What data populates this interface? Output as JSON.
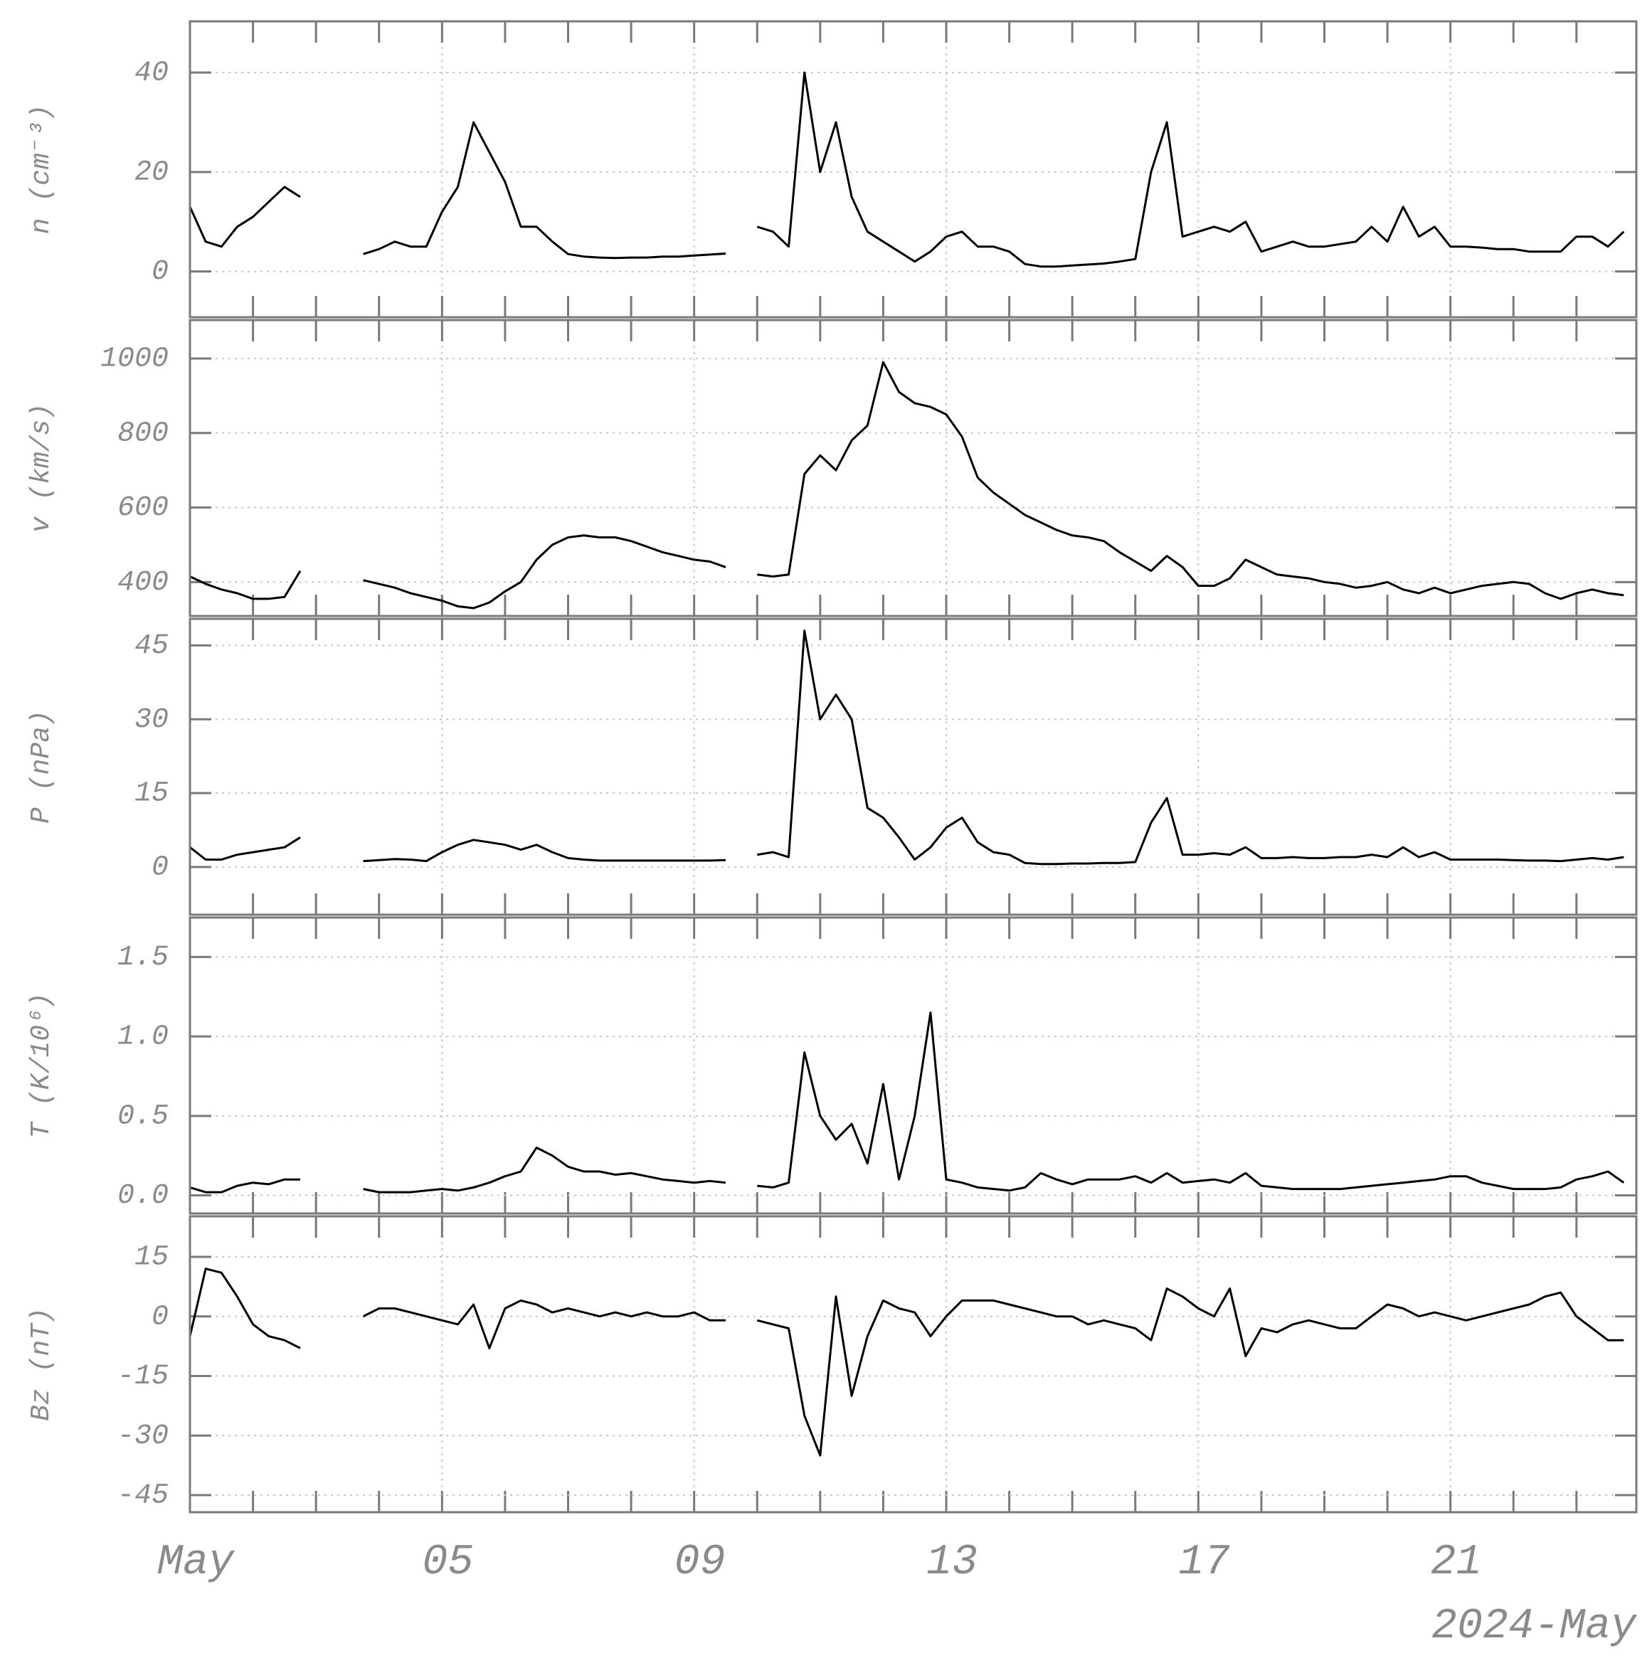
{
  "chart_data": [
    {
      "type": "line",
      "ylabel": "n (cm⁻³)",
      "color": "#000000",
      "ylim": [
        -9.2,
        50.3
      ],
      "yticks": [
        0,
        20,
        40
      ],
      "grid": true,
      "x": [
        1,
        1.25,
        1.5,
        1.75,
        2,
        2.25,
        2.5,
        2.75,
        3,
        3.25,
        3.5,
        3.75,
        4,
        4.25,
        4.5,
        4.75,
        5,
        5.25,
        5.5,
        5.75,
        6,
        6.25,
        6.5,
        6.75,
        7,
        7.25,
        7.5,
        7.75,
        8,
        8.25,
        8.5,
        8.75,
        9,
        9.25,
        9.5,
        9.75,
        10,
        10.25,
        10.5,
        10.75,
        11,
        11.25,
        11.5,
        11.75,
        12,
        12.25,
        12.5,
        12.75,
        13,
        13.25,
        13.5,
        13.75,
        14,
        14.25,
        14.5,
        14.75,
        15,
        15.25,
        15.5,
        15.75,
        16,
        16.25,
        16.5,
        16.75,
        17,
        17.25,
        17.5,
        17.75,
        18,
        18.25,
        18.5,
        18.75,
        19,
        19.25,
        19.5,
        19.75,
        20,
        20.25,
        20.5,
        20.75,
        21,
        21.25,
        21.5,
        21.75,
        22,
        22.25,
        22.5,
        22.75,
        23,
        23.25,
        23.5,
        23.75
      ],
      "values": [
        13,
        6,
        5,
        9,
        11,
        14,
        17,
        15,
        null,
        null,
        null,
        3.5,
        4.5,
        6,
        5,
        5,
        12,
        17,
        30,
        24,
        18,
        9,
        9,
        6,
        3.5,
        3,
        2.8,
        2.7,
        2.8,
        2.8,
        3,
        3,
        3.2,
        3.4,
        3.6,
        null,
        9,
        8,
        5,
        40,
        20,
        30,
        15,
        8,
        6,
        4,
        2,
        4,
        7,
        8,
        5,
        5,
        4,
        1.5,
        1,
        1,
        1.2,
        1.4,
        1.6,
        2,
        2.5,
        20,
        30,
        7,
        8,
        9,
        8,
        10,
        4,
        5,
        6,
        5,
        5,
        5.5,
        6,
        9,
        6,
        13,
        7,
        9,
        5,
        5,
        4.8,
        4.5,
        4.5,
        4,
        4,
        4,
        7,
        7,
        5,
        8
      ]
    },
    {
      "type": "line",
      "ylabel": "v (km/s)",
      "color": "#000000",
      "ylim": [
        309,
        1103
      ],
      "yticks": [
        400,
        600,
        800,
        1000
      ],
      "grid": true,
      "x": [
        1,
        1.25,
        1.5,
        1.75,
        2,
        2.25,
        2.5,
        2.75,
        3,
        3.25,
        3.5,
        3.75,
        4,
        4.25,
        4.5,
        4.75,
        5,
        5.25,
        5.5,
        5.75,
        6,
        6.25,
        6.5,
        6.75,
        7,
        7.25,
        7.5,
        7.75,
        8,
        8.25,
        8.5,
        8.75,
        9,
        9.25,
        9.5,
        9.75,
        10,
        10.25,
        10.5,
        10.75,
        11,
        11.25,
        11.5,
        11.75,
        12,
        12.25,
        12.5,
        12.75,
        13,
        13.25,
        13.5,
        13.75,
        14,
        14.25,
        14.5,
        14.75,
        15,
        15.25,
        15.5,
        15.75,
        16,
        16.25,
        16.5,
        16.75,
        17,
        17.25,
        17.5,
        17.75,
        18,
        18.25,
        18.5,
        18.75,
        19,
        19.25,
        19.5,
        19.75,
        20,
        20.25,
        20.5,
        20.75,
        21,
        21.25,
        21.5,
        21.75,
        22,
        22.25,
        22.5,
        22.75,
        23,
        23.25,
        23.5,
        23.75
      ],
      "values": [
        415,
        395,
        380,
        370,
        355,
        355,
        360,
        430,
        null,
        null,
        null,
        405,
        395,
        385,
        370,
        360,
        350,
        335,
        330,
        345,
        375,
        400,
        460,
        500,
        520,
        525,
        520,
        520,
        510,
        495,
        480,
        470,
        460,
        455,
        440,
        null,
        420,
        415,
        420,
        690,
        740,
        700,
        780,
        820,
        990,
        910,
        880,
        870,
        850,
        790,
        680,
        640,
        610,
        580,
        560,
        540,
        525,
        520,
        510,
        480,
        455,
        430,
        470,
        440,
        390,
        390,
        410,
        460,
        440,
        420,
        415,
        410,
        400,
        395,
        385,
        390,
        400,
        380,
        370,
        385,
        370,
        380,
        390,
        395,
        400,
        395,
        370,
        355,
        370,
        380,
        370,
        365
      ]
    },
    {
      "type": "line",
      "ylabel": "P (nPa)",
      "color": "#000000",
      "ylim": [
        -9.7,
        50.4
      ],
      "yticks": [
        0,
        15,
        30,
        45
      ],
      "grid": true,
      "x": [
        1,
        1.25,
        1.5,
        1.75,
        2,
        2.25,
        2.5,
        2.75,
        3,
        3.25,
        3.5,
        3.75,
        4,
        4.25,
        4.5,
        4.75,
        5,
        5.25,
        5.5,
        5.75,
        6,
        6.25,
        6.5,
        6.75,
        7,
        7.25,
        7.5,
        7.75,
        8,
        8.25,
        8.5,
        8.75,
        9,
        9.25,
        9.5,
        9.75,
        10,
        10.25,
        10.5,
        10.75,
        11,
        11.25,
        11.5,
        11.75,
        12,
        12.25,
        12.5,
        12.75,
        13,
        13.25,
        13.5,
        13.75,
        14,
        14.25,
        14.5,
        14.75,
        15,
        15.25,
        15.5,
        15.75,
        16,
        16.25,
        16.5,
        16.75,
        17,
        17.25,
        17.5,
        17.75,
        18,
        18.25,
        18.5,
        18.75,
        19,
        19.25,
        19.5,
        19.75,
        20,
        20.25,
        20.5,
        20.75,
        21,
        21.25,
        21.5,
        21.75,
        22,
        22.25,
        22.5,
        22.75,
        23,
        23.25,
        23.5,
        23.75
      ],
      "values": [
        4,
        1.5,
        1.5,
        2.5,
        3,
        3.5,
        4,
        6,
        null,
        null,
        null,
        1.2,
        1.4,
        1.6,
        1.5,
        1.2,
        3,
        4.5,
        5.5,
        5,
        4.5,
        3.5,
        4.5,
        3,
        1.8,
        1.5,
        1.3,
        1.3,
        1.3,
        1.3,
        1.3,
        1.3,
        1.3,
        1.3,
        1.4,
        null,
        2.5,
        3,
        2,
        48,
        30,
        35,
        30,
        12,
        10,
        6,
        1.5,
        4,
        8,
        10,
        5,
        3,
        2.5,
        0.8,
        0.6,
        0.6,
        0.7,
        0.7,
        0.8,
        0.8,
        1,
        9,
        14,
        2.5,
        2.5,
        2.8,
        2.5,
        4,
        1.8,
        1.8,
        2,
        1.8,
        1.8,
        2,
        2,
        2.5,
        2,
        4,
        2,
        3,
        1.5,
        1.5,
        1.5,
        1.5,
        1.4,
        1.3,
        1.3,
        1.2,
        1.5,
        1.8,
        1.5,
        2
      ]
    },
    {
      "type": "line",
      "ylabel": "T (K/10⁶)",
      "color": "#000000",
      "ylim": [
        -0.114,
        1.748
      ],
      "yticks": [
        {
          "value": 0,
          "label": "0.0"
        },
        0.5,
        {
          "value": 1,
          "label": "1.0"
        },
        1.5
      ],
      "grid": true,
      "x": [
        1,
        1.25,
        1.5,
        1.75,
        2,
        2.25,
        2.5,
        2.75,
        3,
        3.25,
        3.5,
        3.75,
        4,
        4.25,
        4.5,
        4.75,
        5,
        5.25,
        5.5,
        5.75,
        6,
        6.25,
        6.5,
        6.75,
        7,
        7.25,
        7.5,
        7.75,
        8,
        8.25,
        8.5,
        8.75,
        9,
        9.25,
        9.5,
        9.75,
        10,
        10.25,
        10.5,
        10.75,
        11,
        11.25,
        11.5,
        11.75,
        12,
        12.25,
        12.5,
        12.75,
        13,
        13.25,
        13.5,
        13.75,
        14,
        14.25,
        14.5,
        14.75,
        15,
        15.25,
        15.5,
        15.75,
        16,
        16.25,
        16.5,
        16.75,
        17,
        17.25,
        17.5,
        17.75,
        18,
        18.25,
        18.5,
        18.75,
        19,
        19.25,
        19.5,
        19.75,
        20,
        20.25,
        20.5,
        20.75,
        21,
        21.25,
        21.5,
        21.75,
        22,
        22.25,
        22.5,
        22.75,
        23,
        23.25,
        23.5,
        23.75
      ],
      "values": [
        0.05,
        0.02,
        0.02,
        0.06,
        0.08,
        0.07,
        0.1,
        0.1,
        null,
        null,
        null,
        0.04,
        0.02,
        0.02,
        0.02,
        0.03,
        0.04,
        0.03,
        0.05,
        0.08,
        0.12,
        0.15,
        0.3,
        0.25,
        0.18,
        0.15,
        0.15,
        0.13,
        0.14,
        0.12,
        0.1,
        0.09,
        0.08,
        0.09,
        0.08,
        null,
        0.06,
        0.05,
        0.08,
        0.9,
        0.5,
        0.35,
        0.45,
        0.2,
        0.7,
        0.1,
        0.5,
        1.15,
        0.1,
        0.08,
        0.05,
        0.04,
        0.03,
        0.05,
        0.14,
        0.1,
        0.07,
        0.1,
        0.1,
        0.1,
        0.12,
        0.08,
        0.14,
        0.08,
        0.09,
        0.1,
        0.08,
        0.14,
        0.06,
        0.05,
        0.04,
        0.04,
        0.04,
        0.04,
        0.05,
        0.06,
        0.07,
        0.08,
        0.09,
        0.1,
        0.12,
        0.12,
        0.08,
        0.06,
        0.04,
        0.04,
        0.04,
        0.05,
        0.1,
        0.12,
        0.15,
        0.08
      ]
    },
    {
      "type": "line",
      "ylabel": "Bz (nT)",
      "color": "#000000",
      "ylim": [
        -49.3,
        25.2
      ],
      "yticks": [
        -45,
        -30,
        -15,
        0,
        15
      ],
      "grid": true,
      "x": [
        1,
        1.25,
        1.5,
        1.75,
        2,
        2.25,
        2.5,
        2.75,
        3,
        3.25,
        3.5,
        3.75,
        4,
        4.25,
        4.5,
        4.75,
        5,
        5.25,
        5.5,
        5.75,
        6,
        6.25,
        6.5,
        6.75,
        7,
        7.25,
        7.5,
        7.75,
        8,
        8.25,
        8.5,
        8.75,
        9,
        9.25,
        9.5,
        9.75,
        10,
        10.25,
        10.5,
        10.75,
        11,
        11.25,
        11.5,
        11.75,
        12,
        12.25,
        12.5,
        12.75,
        13,
        13.25,
        13.5,
        13.75,
        14,
        14.25,
        14.5,
        14.75,
        15,
        15.25,
        15.5,
        15.75,
        16,
        16.25,
        16.5,
        16.75,
        17,
        17.25,
        17.5,
        17.75,
        18,
        18.25,
        18.5,
        18.75,
        19,
        19.25,
        19.5,
        19.75,
        20,
        20.25,
        20.5,
        20.75,
        21,
        21.25,
        21.5,
        21.75,
        22,
        22.25,
        22.5,
        22.75,
        23,
        23.25,
        23.5,
        23.75
      ],
      "values": [
        -5,
        12,
        11,
        5,
        -2,
        -5,
        -6,
        -8,
        null,
        null,
        null,
        0,
        2,
        2,
        1,
        0,
        -1,
        -2,
        3,
        -8,
        2,
        4,
        3,
        1,
        2,
        1,
        0,
        1,
        0,
        1,
        0,
        0,
        1,
        -1,
        -1,
        null,
        -1,
        -2,
        -3,
        -25,
        -35,
        5,
        -20,
        -5,
        4,
        2,
        1,
        -5,
        0,
        4,
        4,
        4,
        3,
        2,
        1,
        0,
        0,
        -2,
        -1,
        -2,
        -3,
        -6,
        7,
        5,
        2,
        0,
        7,
        -10,
        -3,
        -4,
        -2,
        -1,
        -2,
        -3,
        -3,
        0,
        3,
        2,
        0,
        1,
        0,
        -1,
        0,
        1,
        2,
        3,
        5,
        6,
        0,
        -3,
        -6,
        -6
      ],
      "xlim": [
        1,
        23.95
      ],
      "xticks": [
        {
          "value": 1,
          "label": "May"
        },
        {
          "value": 5,
          "label": "05"
        },
        {
          "value": 9,
          "label": "09"
        },
        13,
        17,
        21
      ],
      "minor_xticks": [
        2,
        3,
        4,
        6,
        7,
        8,
        10,
        11,
        12,
        14,
        15,
        16,
        18,
        19,
        20,
        22,
        23
      ],
      "xlabel": "2024-May"
    }
  ]
}
